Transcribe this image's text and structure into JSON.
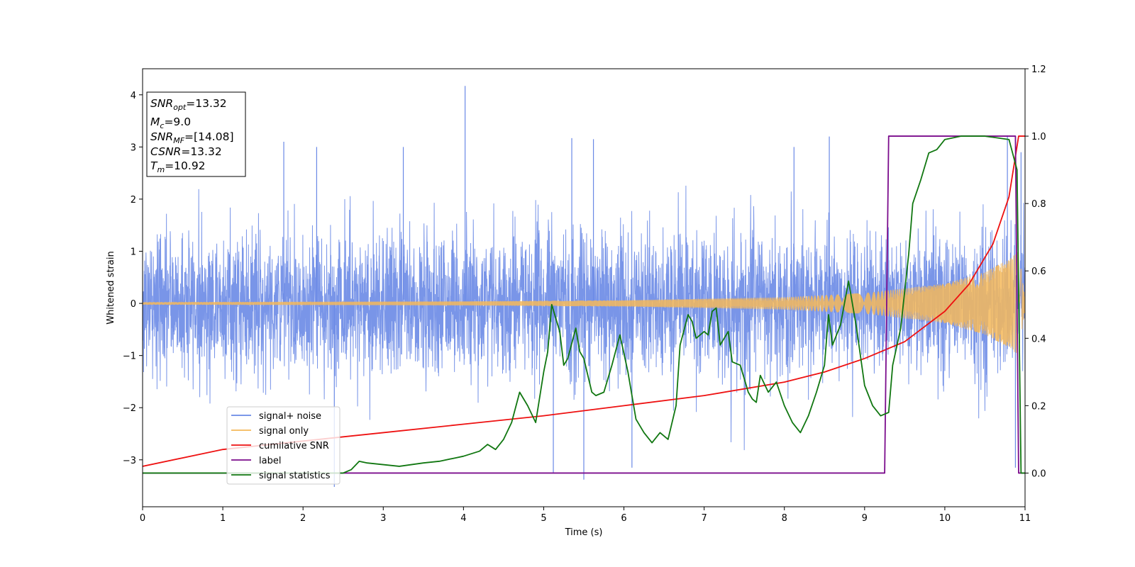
{
  "chart_data": {
    "type": "line",
    "xlabel": "Time (s)",
    "ylabel": "Whitened strain",
    "xlim": [
      0,
      11
    ],
    "ylim_left": [
      -3.9,
      4.5
    ],
    "ylim_right": [
      -0.1,
      1.2
    ],
    "xticks": [
      "0",
      "1",
      "2",
      "3",
      "4",
      "5",
      "6",
      "7",
      "8",
      "9",
      "10",
      "11"
    ],
    "yticks_left": [
      "−3",
      "−2",
      "−1",
      "0",
      "1",
      "2",
      "3",
      "4"
    ],
    "yticks_right": [
      "0.0",
      "0.2",
      "0.4",
      "0.6",
      "0.8",
      "1.0",
      "1.2"
    ],
    "grid": false,
    "legend_position": "bottom-left",
    "annotation": [
      {
        "base": "SNR",
        "sub": "opt",
        "value": "=13.32"
      },
      {
        "base": "M",
        "sub": "c",
        "value": "=9.0"
      },
      {
        "base": "SNR",
        "sub": "MF",
        "value": "=[14.08]"
      },
      {
        "base": "CSNR",
        "sub": "",
        "value": "=13.32"
      },
      {
        "base": "T",
        "sub": "m",
        "value": "=10.92"
      }
    ],
    "series": [
      {
        "name": "signal+ noise",
        "axis": "left",
        "color": "#6a89e6",
        "kind": "noise",
        "noise_std": 0.68,
        "peak_samples": [
          [
            4.02,
            4.17
          ],
          [
            5.5,
            -3.38
          ],
          [
            2.39,
            -3.52
          ],
          [
            5.12,
            -3.25
          ],
          [
            6.1,
            -3.15
          ],
          [
            10.88,
            -3.15
          ],
          [
            1.76,
            3.1
          ],
          [
            2.17,
            3.0
          ],
          [
            3.25,
            3.0
          ],
          [
            5.35,
            3.17
          ],
          [
            5.62,
            3.15
          ],
          [
            8.12,
            3.0
          ],
          [
            8.56,
            3.2
          ],
          [
            10.78,
            3.22
          ],
          [
            10.95,
            2.9
          ]
        ]
      },
      {
        "name": "signal only",
        "axis": "left",
        "color": "#f5b85a",
        "kind": "chirp",
        "amplitude_envelope": [
          [
            0,
            0.025
          ],
          [
            4,
            0.04
          ],
          [
            6,
            0.06
          ],
          [
            8,
            0.12
          ],
          [
            9,
            0.2
          ],
          [
            10,
            0.38
          ],
          [
            10.5,
            0.6
          ],
          [
            10.8,
            0.85
          ],
          [
            10.92,
            1.0
          ],
          [
            11,
            0.1
          ]
        ]
      },
      {
        "name": "cumilative SNR",
        "axis": "right",
        "color": "#ee1111",
        "points": [
          [
            0,
            0.02
          ],
          [
            1,
            0.07
          ],
          [
            2,
            0.095
          ],
          [
            3,
            0.12
          ],
          [
            4,
            0.145
          ],
          [
            5,
            0.17
          ],
          [
            6,
            0.2
          ],
          [
            7,
            0.23
          ],
          [
            8,
            0.27
          ],
          [
            8.5,
            0.3
          ],
          [
            9,
            0.34
          ],
          [
            9.5,
            0.39
          ],
          [
            10,
            0.48
          ],
          [
            10.3,
            0.56
          ],
          [
            10.6,
            0.68
          ],
          [
            10.8,
            0.82
          ],
          [
            10.92,
            1.0
          ],
          [
            11,
            1.0
          ]
        ]
      },
      {
        "name": "label",
        "axis": "right",
        "color": "#7b0c8c",
        "points": [
          [
            0,
            0.0
          ],
          [
            9.25,
            0.0
          ],
          [
            9.3,
            1.0
          ],
          [
            10.88,
            1.0
          ],
          [
            10.92,
            0.0
          ],
          [
            11,
            0.0
          ]
        ]
      },
      {
        "name": "signal statistics",
        "axis": "right",
        "color": "#117711",
        "points": [
          [
            0,
            0.0
          ],
          [
            2.5,
            0.0
          ],
          [
            2.6,
            0.01
          ],
          [
            2.7,
            0.035
          ],
          [
            2.8,
            0.03
          ],
          [
            3.0,
            0.025
          ],
          [
            3.2,
            0.02
          ],
          [
            3.5,
            0.03
          ],
          [
            3.7,
            0.035
          ],
          [
            3.9,
            0.045
          ],
          [
            4.0,
            0.05
          ],
          [
            4.2,
            0.065
          ],
          [
            4.3,
            0.085
          ],
          [
            4.4,
            0.07
          ],
          [
            4.5,
            0.1
          ],
          [
            4.6,
            0.15
          ],
          [
            4.7,
            0.24
          ],
          [
            4.8,
            0.2
          ],
          [
            4.9,
            0.15
          ],
          [
            5.0,
            0.3
          ],
          [
            5.05,
            0.36
          ],
          [
            5.1,
            0.5
          ],
          [
            5.2,
            0.42
          ],
          [
            5.25,
            0.32
          ],
          [
            5.3,
            0.34
          ],
          [
            5.4,
            0.43
          ],
          [
            5.45,
            0.36
          ],
          [
            5.5,
            0.34
          ],
          [
            5.6,
            0.24
          ],
          [
            5.65,
            0.23
          ],
          [
            5.75,
            0.24
          ],
          [
            5.85,
            0.32
          ],
          [
            5.95,
            0.41
          ],
          [
            6.05,
            0.3
          ],
          [
            6.15,
            0.16
          ],
          [
            6.25,
            0.12
          ],
          [
            6.35,
            0.09
          ],
          [
            6.45,
            0.12
          ],
          [
            6.55,
            0.1
          ],
          [
            6.65,
            0.2
          ],
          [
            6.7,
            0.38
          ],
          [
            6.8,
            0.47
          ],
          [
            6.85,
            0.45
          ],
          [
            6.9,
            0.4
          ],
          [
            7.0,
            0.42
          ],
          [
            7.05,
            0.41
          ],
          [
            7.1,
            0.48
          ],
          [
            7.15,
            0.49
          ],
          [
            7.2,
            0.38
          ],
          [
            7.3,
            0.42
          ],
          [
            7.35,
            0.33
          ],
          [
            7.45,
            0.32
          ],
          [
            7.55,
            0.24
          ],
          [
            7.6,
            0.22
          ],
          [
            7.65,
            0.21
          ],
          [
            7.7,
            0.29
          ],
          [
            7.8,
            0.24
          ],
          [
            7.9,
            0.27
          ],
          [
            8.0,
            0.2
          ],
          [
            8.1,
            0.15
          ],
          [
            8.2,
            0.12
          ],
          [
            8.3,
            0.17
          ],
          [
            8.4,
            0.24
          ],
          [
            8.5,
            0.32
          ],
          [
            8.55,
            0.47
          ],
          [
            8.6,
            0.38
          ],
          [
            8.7,
            0.44
          ],
          [
            8.8,
            0.57
          ],
          [
            8.9,
            0.43
          ],
          [
            9.0,
            0.26
          ],
          [
            9.1,
            0.2
          ],
          [
            9.2,
            0.17
          ],
          [
            9.3,
            0.18
          ],
          [
            9.35,
            0.32
          ],
          [
            9.45,
            0.43
          ],
          [
            9.55,
            0.65
          ],
          [
            9.6,
            0.8
          ],
          [
            9.7,
            0.87
          ],
          [
            9.8,
            0.95
          ],
          [
            9.9,
            0.96
          ],
          [
            10.0,
            0.99
          ],
          [
            10.2,
            1.0
          ],
          [
            10.5,
            1.0
          ],
          [
            10.8,
            0.99
          ],
          [
            10.9,
            0.9
          ],
          [
            10.95,
            0.0
          ],
          [
            11.0,
            0.0
          ]
        ]
      }
    ]
  }
}
